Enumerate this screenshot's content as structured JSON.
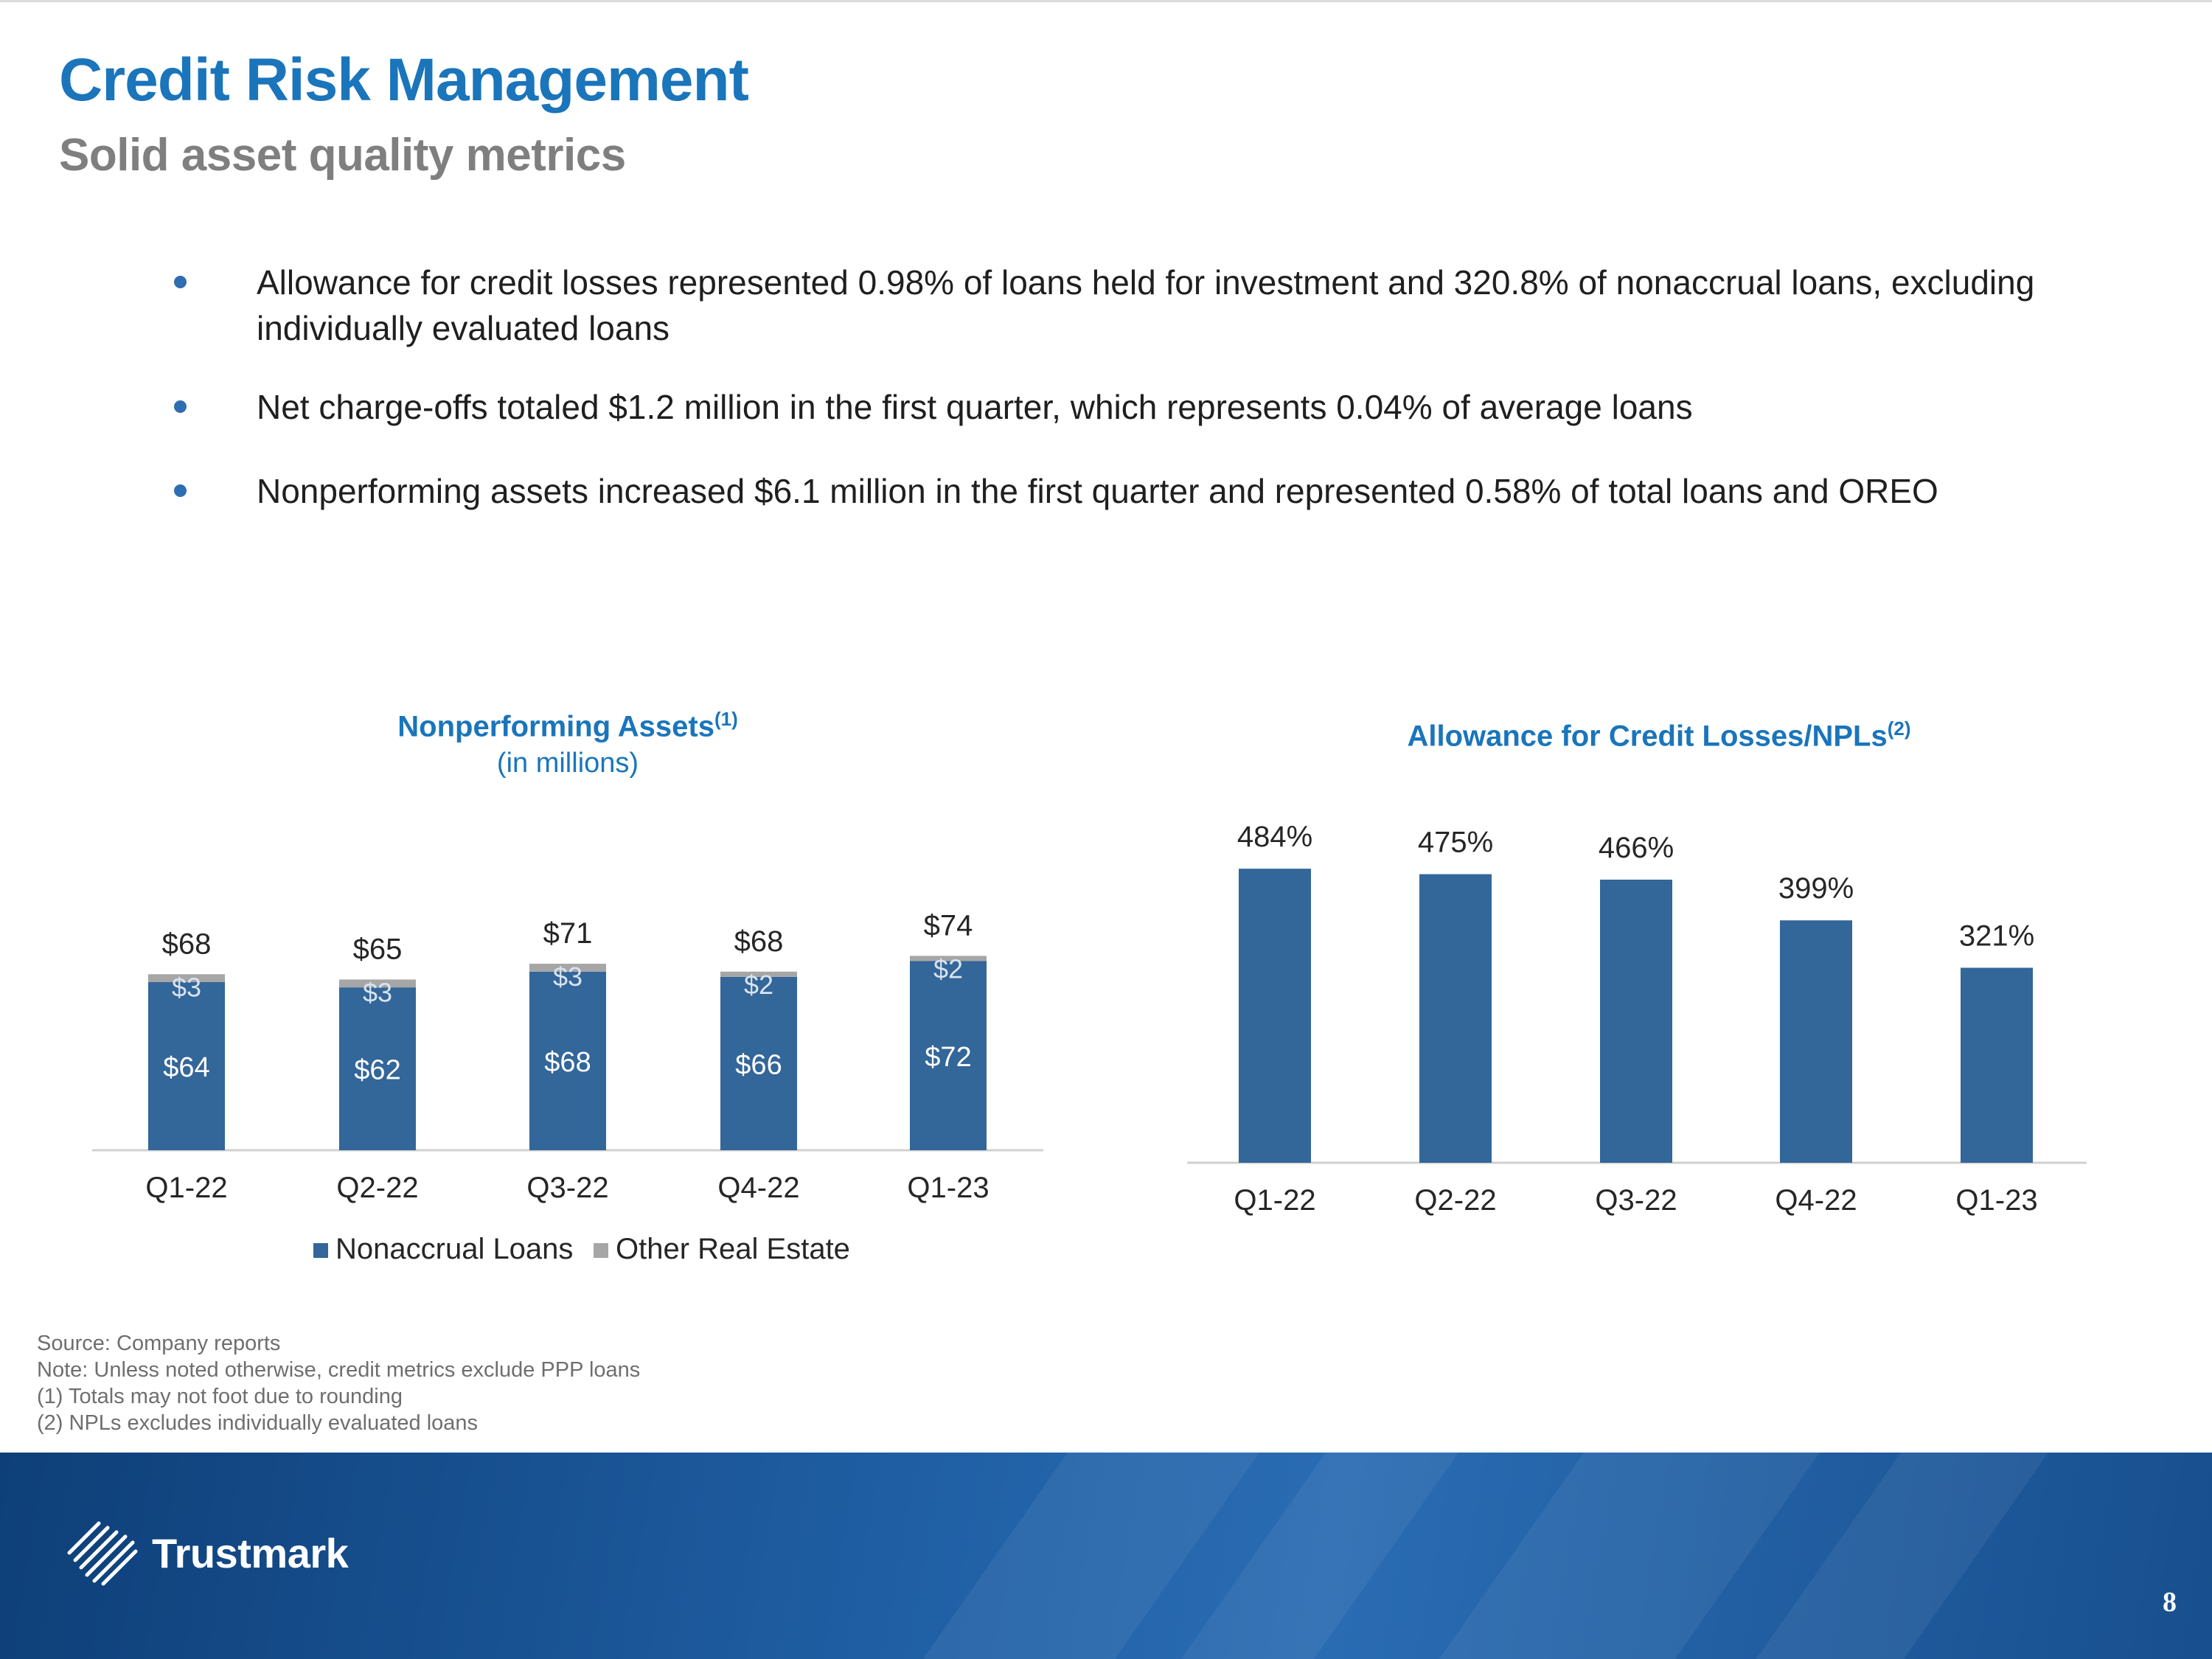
{
  "header": {
    "title": "Credit Risk Management",
    "subtitle": "Solid asset quality metrics"
  },
  "bullets": [
    "Allowance for credit losses represented 0.98% of loans held for investment and 320.8% of nonaccrual loans, excluding individually evaluated loans",
    "Net charge-offs totaled $1.2 million in the first quarter, which represents 0.04% of average loans",
    "Nonperforming assets increased $6.1 million in the first quarter and represented 0.58% of total loans and OREO"
  ],
  "chart_data": [
    {
      "type": "bar",
      "stacked": true,
      "title": "Nonperforming Assets",
      "title_note": "(1)",
      "subtitle": "(in millions)",
      "categories": [
        "Q1-22",
        "Q2-22",
        "Q3-22",
        "Q4-22",
        "Q1-23"
      ],
      "series": [
        {
          "name": "Nonaccrual Loans",
          "values": [
            64,
            62,
            68,
            66,
            72
          ],
          "labels": [
            "$64",
            "$62",
            "$68",
            "$66",
            "$72"
          ],
          "color": "#336699"
        },
        {
          "name": "Other Real Estate",
          "values": [
            3,
            3,
            3,
            2,
            2
          ],
          "labels": [
            "$3",
            "$3",
            "$3",
            "$2",
            "$2"
          ],
          "color": "#a6a6a6"
        }
      ],
      "totals": [
        "$68",
        "$65",
        "$71",
        "$68",
        "$74"
      ],
      "legend_position": "bottom",
      "ylim": [
        0,
        80
      ],
      "xlabel": "",
      "ylabel": ""
    },
    {
      "type": "bar",
      "title": "Allowance for Credit Losses/NPLs",
      "title_note": "(2)",
      "categories": [
        "Q1-22",
        "Q2-22",
        "Q3-22",
        "Q4-22",
        "Q1-23"
      ],
      "values": [
        484,
        475,
        466,
        399,
        321
      ],
      "labels": [
        "484%",
        "475%",
        "466%",
        "399%",
        "321%"
      ],
      "color": "#336699",
      "ylim": [
        0,
        500
      ],
      "xlabel": "",
      "ylabel": ""
    }
  ],
  "notes": [
    "Source: Company reports",
    "Note: Unless noted otherwise, credit metrics exclude PPP loans",
    "(1) Totals may not foot due to rounding",
    "(2) NPLs excludes individually evaluated loans"
  ],
  "footer": {
    "brand": "Trustmark",
    "page_number": "8"
  }
}
